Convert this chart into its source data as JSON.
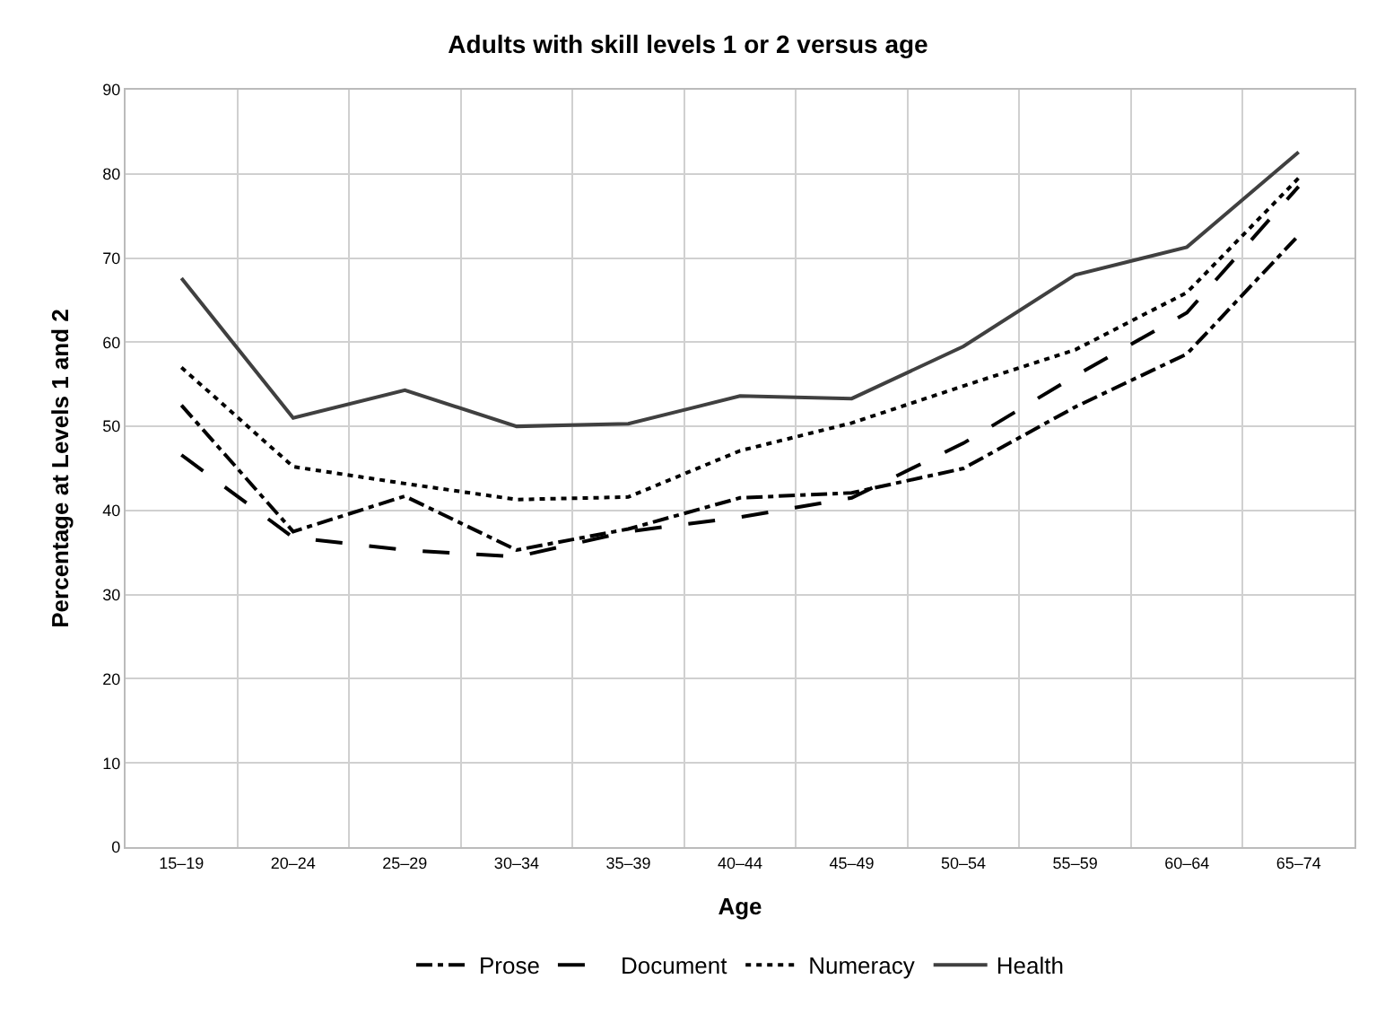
{
  "chart_data": {
    "type": "line",
    "title": "Adults with skill levels 1 or 2 versus age",
    "xlabel": "Age",
    "ylabel": "Percentage at Levels 1 and 2",
    "categories": [
      "15–19",
      "20–24",
      "25–29",
      "30–34",
      "35–39",
      "40–44",
      "45–49",
      "50–54",
      "55–59",
      "60–64",
      "65–74"
    ],
    "series": [
      {
        "name": "Prose",
        "color": "#000000",
        "line_style": "dashdot",
        "values": [
          52.5,
          37.5,
          41.7,
          35.3,
          37.8,
          41.5,
          42.1,
          45,
          52.3,
          58.6,
          72.7
        ]
      },
      {
        "name": "Document",
        "color": "#000000",
        "line_style": "dashed",
        "values": [
          46.6,
          36.8,
          35.3,
          34.5,
          37.5,
          39.2,
          41.5,
          48,
          56,
          63.5,
          78.5
        ]
      },
      {
        "name": "Numeracy",
        "color": "#000000",
        "line_style": "dotted",
        "values": [
          57,
          45.2,
          43.2,
          41.3,
          41.6,
          47.1,
          50.4,
          54.8,
          59.1,
          65.9,
          79.5
        ]
      },
      {
        "name": "Health",
        "color": "#404040",
        "line_style": "solid",
        "values": [
          67.6,
          51,
          54.3,
          50,
          50.3,
          53.6,
          53.3,
          59.5,
          68,
          71.3,
          82.6
        ]
      }
    ],
    "ylim": [
      0,
      90
    ],
    "yticks": [
      0,
      10,
      20,
      30,
      40,
      50,
      60,
      70,
      80,
      90
    ],
    "grid": true,
    "legend": "bottom",
    "marker": "none"
  }
}
